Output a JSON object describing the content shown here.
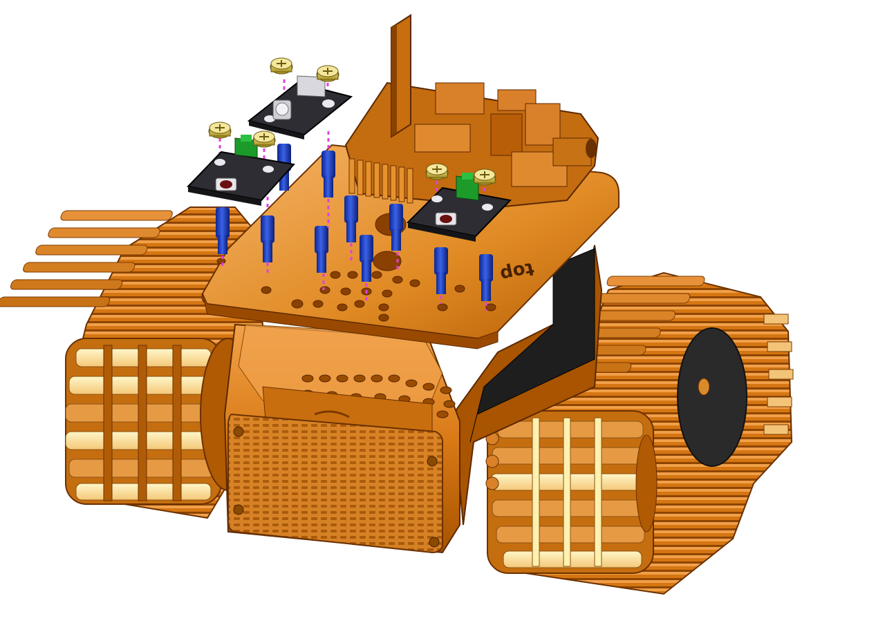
{
  "image_alt": "",
  "chassis": {
    "engraved_label": "top"
  },
  "parts": {
    "sensor_modules": 3,
    "standoffs": 12,
    "screws": 6
  },
  "colors": {
    "background": "#ffffff",
    "body_orange": "#d97a16",
    "body_light": "#f1a54c",
    "body_dark": "#8c4300",
    "track_highlight": "#fff1b0",
    "standoff_blue": "#1c3bb8",
    "pcb_dark": "#2d2d33",
    "connector_green": "#1c9a2a",
    "screw_gold": "#d6c24a",
    "guide_line": "#e040e0"
  }
}
